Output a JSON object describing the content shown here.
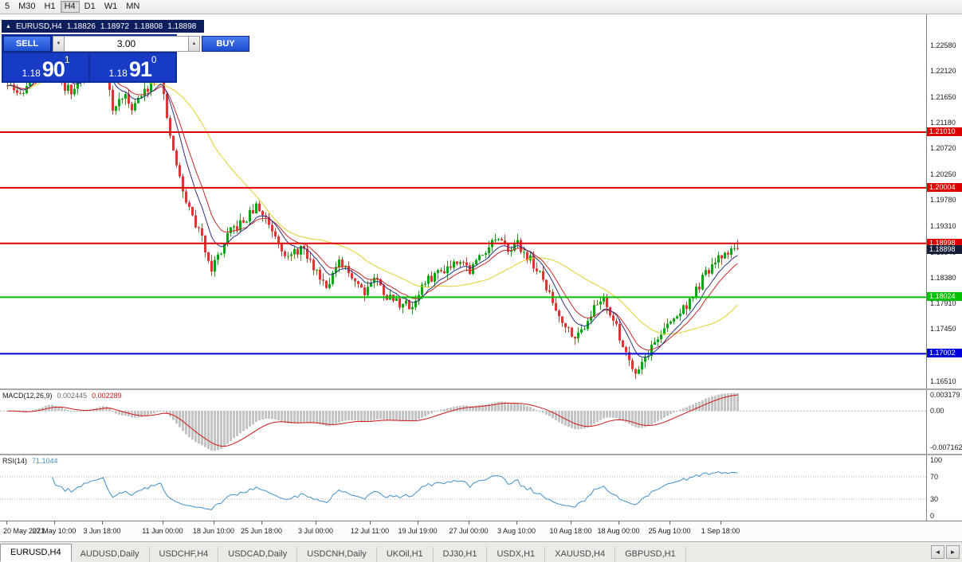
{
  "toolbar": {
    "timeframes": [
      "5",
      "M30",
      "H1",
      "H4",
      "D1",
      "W1",
      "MN"
    ],
    "active": "H4"
  },
  "chart_header": {
    "symbol": "EURUSD,H4",
    "open": "1.18826",
    "high": "1.18972",
    "low": "1.18808",
    "close": "1.18898"
  },
  "trade_panel": {
    "sell_label": "SELL",
    "buy_label": "BUY",
    "volume": "3.00",
    "bid": {
      "prefix": "1.18",
      "big": "90",
      "sup": "1"
    },
    "ask": {
      "prefix": "1.18",
      "big": "91",
      "sup": "0"
    }
  },
  "colors": {
    "candle_up": "#0fa315",
    "candle_down": "#d93636",
    "red_line": "#dd0000",
    "green_line": "#00c000",
    "blue_line": "#0000dd",
    "current_tag": "#141e38"
  },
  "chart_data": {
    "type": "candlestick",
    "symbol": "EURUSD",
    "timeframe": "H4",
    "visible_bar_ohlc": {
      "open": 1.18826,
      "high": 1.18972,
      "low": 1.18808,
      "close": 1.18898
    },
    "y_axis_labels": [
      "1.22580",
      "1.22120",
      "1.21650",
      "1.21180",
      "1.20720",
      "1.20250",
      "1.19780",
      "1.19310",
      "1.18840",
      "1.18380",
      "1.17910",
      "1.17450",
      "1.16980",
      "1.16510"
    ],
    "horizontal_lines": [
      {
        "price": 1.2101,
        "label": "1.21010",
        "color": "#dd0000"
      },
      {
        "price": 1.20004,
        "label": "1.20004",
        "color": "#dd0000"
      },
      {
        "price": 1.18998,
        "label": "1.18998",
        "color": "#dd0000"
      },
      {
        "price": 1.18024,
        "label": "1.18024",
        "color": "#00c000"
      },
      {
        "price": 1.17002,
        "label": "1.17002",
        "color": "#0000dd"
      }
    ],
    "current_price": {
      "value": 1.18898,
      "label": "1.18898",
      "tag_color": "#141e38"
    },
    "num_candles": 230,
    "price_path_anchors": [
      [
        0,
        1.2185
      ],
      [
        4,
        1.2168
      ],
      [
        8,
        1.2205
      ],
      [
        12,
        1.2242
      ],
      [
        16,
        1.2196
      ],
      [
        20,
        1.2172
      ],
      [
        24,
        1.2208
      ],
      [
        28,
        1.2228
      ],
      [
        30,
        1.225
      ],
      [
        33,
        1.2138
      ],
      [
        36,
        1.2168
      ],
      [
        39,
        1.2148
      ],
      [
        42,
        1.2165
      ],
      [
        45,
        1.2192
      ],
      [
        48,
        1.2215
      ],
      [
        50,
        1.2118
      ],
      [
        53,
        1.2042
      ],
      [
        55,
        1.1992
      ],
      [
        58,
        1.1948
      ],
      [
        61,
        1.1908
      ],
      [
        64,
        1.1856
      ],
      [
        67,
        1.1886
      ],
      [
        70,
        1.1922
      ],
      [
        74,
        1.1938
      ],
      [
        78,
        1.1966
      ],
      [
        81,
        1.1946
      ],
      [
        84,
        1.1916
      ],
      [
        88,
        1.1872
      ],
      [
        92,
        1.1892
      ],
      [
        96,
        1.1856
      ],
      [
        100,
        1.1826
      ],
      [
        104,
        1.1862
      ],
      [
        108,
        1.1842
      ],
      [
        112,
        1.1814
      ],
      [
        115,
        1.184
      ],
      [
        119,
        1.1804
      ],
      [
        123,
        1.1792
      ],
      [
        127,
        1.1786
      ],
      [
        130,
        1.1822
      ],
      [
        134,
        1.1844
      ],
      [
        138,
        1.1858
      ],
      [
        142,
        1.1874
      ],
      [
        145,
        1.185
      ],
      [
        149,
        1.1884
      ],
      [
        153,
        1.1908
      ],
      [
        156,
        1.1892
      ],
      [
        160,
        1.1898
      ],
      [
        164,
        1.187
      ],
      [
        168,
        1.1832
      ],
      [
        172,
        1.178
      ],
      [
        176,
        1.1744
      ],
      [
        179,
        1.1732
      ],
      [
        183,
        1.1774
      ],
      [
        187,
        1.1804
      ],
      [
        190,
        1.176
      ],
      [
        194,
        1.1702
      ],
      [
        197,
        1.1668
      ],
      [
        200,
        1.1694
      ],
      [
        204,
        1.173
      ],
      [
        208,
        1.1757
      ],
      [
        212,
        1.1782
      ],
      [
        215,
        1.1804
      ],
      [
        219,
        1.1844
      ],
      [
        223,
        1.187
      ],
      [
        226,
        1.1886
      ],
      [
        229,
        1.189
      ]
    ],
    "noise": {
      "seed": 11,
      "close_amp": 0.0009,
      "wick_amp": 0.0012
    },
    "moving_averages": [
      {
        "type": "sma",
        "period": 34,
        "color": "#e3cf2a"
      },
      {
        "type": "ema",
        "period": 13,
        "color": "#c62828"
      },
      {
        "type": "ema",
        "period": 8,
        "color": "#2b3280"
      }
    ],
    "time_axis": [
      {
        "label": "20 May 2021",
        "i": 0
      },
      {
        "label": "27 May 10:00",
        "i": 15
      },
      {
        "label": "3 Jun 18:00",
        "i": 30
      },
      {
        "label": "11 Jun 00:00",
        "i": 49
      },
      {
        "label": "18 Jun 10:00",
        "i": 65
      },
      {
        "label": "25 Jun 18:00",
        "i": 80
      },
      {
        "label": "3 Jul 00:00",
        "i": 97
      },
      {
        "label": "12 Jul 11:00",
        "i": 114
      },
      {
        "label": "19 Jul 19:00",
        "i": 129
      },
      {
        "label": "27 Jul 00:00",
        "i": 145
      },
      {
        "label": "3 Aug 10:00",
        "i": 160
      },
      {
        "label": "10 Aug 18:00",
        "i": 177
      },
      {
        "label": "18 Aug 00:00",
        "i": 192
      },
      {
        "label": "25 Aug 10:00",
        "i": 208
      },
      {
        "label": "1 Sep 18:00",
        "i": 224
      }
    ],
    "indicators": {
      "macd": {
        "label": "MACD(12,26,9)",
        "value_main": "0.002445",
        "value_signal": "0.002289",
        "value_main_color": "#6a6a6a",
        "fast": 12,
        "slow": 26,
        "signal": 9,
        "axis_labels": [
          "0.003179",
          "0.00",
          "-0.007162"
        ],
        "axis_max": 0.003179,
        "axis_min": -0.007162,
        "histogram_color": "#c4c4c4",
        "signal_color": "#d01818"
      },
      "rsi": {
        "label": "RSI(14)",
        "value": "71.1044",
        "period": 14,
        "levels": [
          "100",
          "70",
          "30",
          "0"
        ],
        "line_color": "#4090c8"
      }
    }
  },
  "tabs": {
    "items": [
      "EURUSD,H4",
      "AUDUSD,Daily",
      "USDCHF,H4",
      "USDCAD,Daily",
      "USDCNH,Daily",
      "UKOil,H1",
      "DJ30,H1",
      "USDX,H1",
      "XAUUSD,H4",
      "GBPUSD,H1"
    ],
    "active": "EURUSD,H4"
  },
  "icons": {
    "collapse": "▲",
    "spin_up": "▲",
    "spin_down": "▼",
    "scroll_left": "◄",
    "scroll_right": "►"
  }
}
